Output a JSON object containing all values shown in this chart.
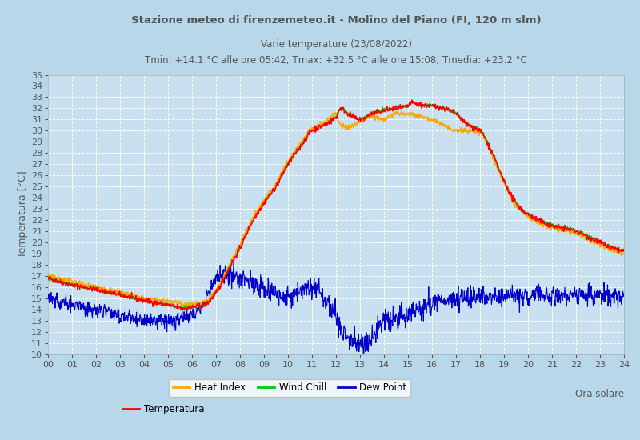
{
  "title1": "Stazione meteo di firenzemeteo.it - Molino del Piano (FI, 120 m slm)",
  "title2": "Varie temperature (23/08/2022)",
  "title3": "Tmin: +14.1 °C alle ore 05:42; Tmax: +32.5 °C alle ore 15:08; Tmedia: +23.2 °C",
  "xlabel": "Ora solare",
  "ylabel": "Temperatura [°C]",
  "xlim": [
    0,
    24
  ],
  "ylim": [
    10,
    35
  ],
  "xticks": [
    0,
    1,
    2,
    3,
    4,
    5,
    6,
    7,
    8,
    9,
    10,
    11,
    12,
    13,
    14,
    15,
    16,
    17,
    18,
    19,
    20,
    21,
    22,
    23,
    24
  ],
  "yticks": [
    10,
    11,
    12,
    13,
    14,
    15,
    16,
    17,
    18,
    19,
    20,
    21,
    22,
    23,
    24,
    25,
    26,
    27,
    28,
    29,
    30,
    31,
    32,
    33,
    34,
    35
  ],
  "bg_color": "#b8d8ea",
  "plot_bg_color": "#c8e0f0",
  "grid_color": "#ffffff",
  "temp_color": "#ff0000",
  "heat_index_color": "#ffa500",
  "wind_chill_color": "#00cc00",
  "dew_point_color": "#0000cc",
  "title_color": "#555555",
  "legend_labels": [
    "Heat Index",
    "Wind Chill",
    "Dew Point",
    "Temperatura"
  ],
  "temp_keypoints": [
    [
      0,
      16.8
    ],
    [
      1,
      16.2
    ],
    [
      2,
      15.8
    ],
    [
      3,
      15.3
    ],
    [
      4,
      14.8
    ],
    [
      5,
      14.4
    ],
    [
      5.7,
      14.1
    ],
    [
      6,
      14.2
    ],
    [
      6.5,
      14.4
    ],
    [
      7,
      15.5
    ],
    [
      7.5,
      17.5
    ],
    [
      8,
      19.5
    ],
    [
      8.5,
      21.8
    ],
    [
      9,
      23.5
    ],
    [
      9.5,
      25.0
    ],
    [
      10,
      27.0
    ],
    [
      10.5,
      28.5
    ],
    [
      11,
      30.0
    ],
    [
      11.5,
      30.5
    ],
    [
      12,
      31.2
    ],
    [
      12.2,
      32.0
    ],
    [
      12.5,
      31.5
    ],
    [
      13,
      31.0
    ],
    [
      13.5,
      31.5
    ],
    [
      14,
      31.8
    ],
    [
      14.5,
      32.0
    ],
    [
      15,
      32.2
    ],
    [
      15.1,
      32.5
    ],
    [
      15.5,
      32.3
    ],
    [
      16,
      32.2
    ],
    [
      16.5,
      32.0
    ],
    [
      17,
      31.5
    ],
    [
      17.5,
      30.5
    ],
    [
      18,
      30.0
    ],
    [
      18.5,
      28.0
    ],
    [
      19,
      25.5
    ],
    [
      19.5,
      23.5
    ],
    [
      20,
      22.5
    ],
    [
      21,
      21.5
    ],
    [
      22,
      21.0
    ],
    [
      22.5,
      20.5
    ],
    [
      23,
      20.0
    ],
    [
      23.5,
      19.5
    ],
    [
      24,
      19.2
    ]
  ],
  "heat_index_keypoints": [
    [
      0,
      17.0
    ],
    [
      1,
      16.5
    ],
    [
      2,
      16.0
    ],
    [
      3,
      15.5
    ],
    [
      4,
      15.0
    ],
    [
      5,
      14.7
    ],
    [
      5.7,
      14.5
    ],
    [
      6,
      14.5
    ],
    [
      6.5,
      14.7
    ],
    [
      7,
      15.7
    ],
    [
      7.5,
      17.8
    ],
    [
      8,
      19.8
    ],
    [
      8.5,
      22.0
    ],
    [
      9,
      23.8
    ],
    [
      9.5,
      25.3
    ],
    [
      10,
      27.3
    ],
    [
      10.5,
      28.8
    ],
    [
      11,
      30.2
    ],
    [
      11.5,
      30.7
    ],
    [
      12,
      31.5
    ],
    [
      12.2,
      30.5
    ],
    [
      12.5,
      30.3
    ],
    [
      13,
      30.8
    ],
    [
      13.5,
      31.3
    ],
    [
      14,
      31.0
    ],
    [
      14.5,
      31.5
    ],
    [
      15,
      31.5
    ],
    [
      15.1,
      31.5
    ],
    [
      15.5,
      31.3
    ],
    [
      16,
      31.0
    ],
    [
      16.5,
      30.5
    ],
    [
      17,
      30.0
    ],
    [
      17.5,
      30.0
    ],
    [
      18,
      29.8
    ],
    [
      18.5,
      27.8
    ],
    [
      19,
      25.3
    ],
    [
      19.5,
      23.3
    ],
    [
      20,
      22.3
    ],
    [
      21,
      21.3
    ],
    [
      22,
      20.8
    ],
    [
      22.5,
      20.3
    ],
    [
      23,
      19.8
    ],
    [
      23.5,
      19.3
    ],
    [
      24,
      19.0
    ]
  ],
  "dew_keypoints": [
    [
      0,
      15.0
    ],
    [
      1,
      14.5
    ],
    [
      2,
      14.0
    ],
    [
      3,
      13.5
    ],
    [
      4,
      13.0
    ],
    [
      5,
      13.0
    ],
    [
      5.5,
      13.2
    ],
    [
      6,
      13.5
    ],
    [
      6.3,
      14.0
    ],
    [
      6.5,
      14.5
    ],
    [
      7,
      16.8
    ],
    [
      7.5,
      17.2
    ],
    [
      8,
      17.0
    ],
    [
      8.5,
      16.5
    ],
    [
      9,
      16.0
    ],
    [
      9.5,
      15.5
    ],
    [
      10,
      15.0
    ],
    [
      10.5,
      15.5
    ],
    [
      11,
      16.0
    ],
    [
      11.2,
      15.8
    ],
    [
      11.5,
      15.0
    ],
    [
      12,
      13.0
    ],
    [
      12.3,
      12.0
    ],
    [
      12.5,
      11.5
    ],
    [
      13,
      11.0
    ],
    [
      13.2,
      10.7
    ],
    [
      13.5,
      11.5
    ],
    [
      14,
      13.0
    ],
    [
      14.5,
      13.3
    ],
    [
      15,
      13.5
    ],
    [
      15.5,
      14.0
    ],
    [
      16,
      14.5
    ],
    [
      16.5,
      14.8
    ],
    [
      17,
      15.0
    ],
    [
      17.5,
      15.2
    ],
    [
      18,
      15.3
    ],
    [
      18.5,
      15.3
    ],
    [
      19,
      15.2
    ],
    [
      19.5,
      15.2
    ],
    [
      20,
      15.2
    ],
    [
      21,
      15.2
    ],
    [
      22,
      15.3
    ],
    [
      23,
      15.3
    ],
    [
      24,
      15.2
    ]
  ]
}
